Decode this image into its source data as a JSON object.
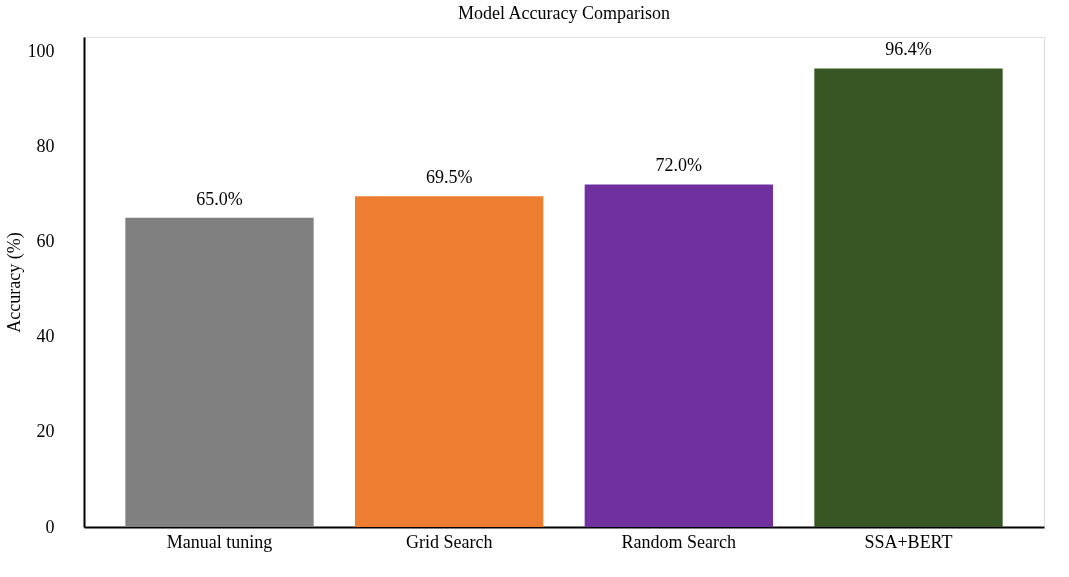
{
  "chart_data": {
    "type": "bar",
    "title": "Model Accuracy Comparison",
    "ylabel": "Accuracy (%)",
    "categories": [
      "Manual tuning",
      "Grid Search",
      "Random Search",
      "SSA+BERT"
    ],
    "values": [
      65.0,
      69.5,
      72.0,
      96.4
    ],
    "colors": [
      "#808080",
      "#ed7d31",
      "#7030a0",
      "#375623"
    ],
    "value_labels": [
      "65.0%",
      "69.5%",
      "72.0%",
      "96.4%"
    ],
    "ylim": [
      0,
      103
    ],
    "yticks": [
      0,
      20,
      40,
      60,
      80,
      100
    ],
    "grid": false,
    "legend": false
  }
}
